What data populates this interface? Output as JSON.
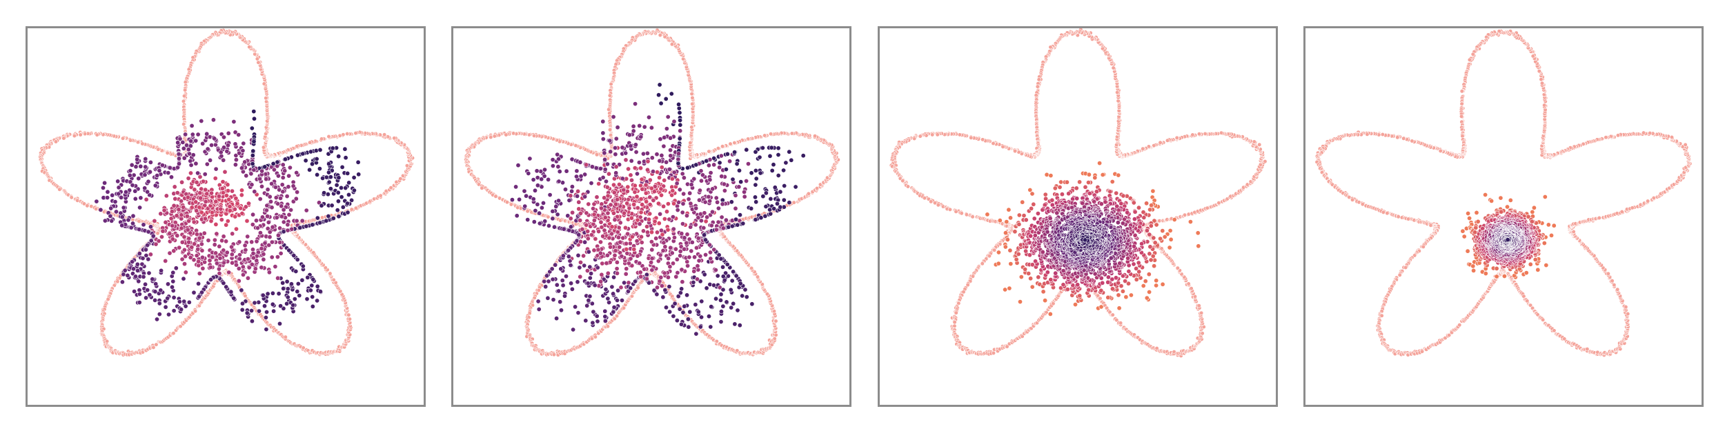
{
  "chart_data": [
    {
      "type": "scatter",
      "boundary": {
        "shape": "five-lobed flower",
        "color": "#f4a39a",
        "points_per_lobe": 240
      },
      "cloud": {
        "shape": "spiral",
        "count": 1500,
        "spread": 0.06,
        "colors": [
          "#2e1a5c",
          "#6a2a7a",
          "#a23a7d",
          "#d5466a"
        ]
      },
      "xlim": [
        -1,
        1
      ],
      "ylim": [
        -1,
        1
      ],
      "grid": false
    },
    {
      "type": "scatter",
      "boundary": {
        "shape": "five-lobed flower",
        "color": "#f4a39a",
        "points_per_lobe": 240
      },
      "cloud": {
        "shape": "spiral",
        "count": 1500,
        "spread": 0.1,
        "colors": [
          "#2e1a5c",
          "#6a2a7a",
          "#a23a7d",
          "#d5466a"
        ]
      },
      "xlim": [
        -1,
        1
      ],
      "ylim": [
        -1,
        1
      ],
      "grid": false
    },
    {
      "type": "scatter",
      "boundary": {
        "shape": "five-lobed flower",
        "color": "#f4a39a",
        "points_per_lobe": 240
      },
      "cloud": {
        "shape": "gaussian blob",
        "count": 1700,
        "center": [
          0.04,
          -0.18
        ],
        "sigma": [
          0.16,
          0.14
        ],
        "colors": [
          "#2e1a5c",
          "#6a2a7a",
          "#c43d70",
          "#ee7a58"
        ]
      },
      "xlim": [
        -1,
        1
      ],
      "ylim": [
        -1,
        1
      ],
      "grid": false
    },
    {
      "type": "scatter",
      "boundary": {
        "shape": "five-lobed flower",
        "color": "#f4a39a",
        "points_per_lobe": 240
      },
      "cloud": {
        "shape": "gaussian blob",
        "count": 1300,
        "center": [
          0.02,
          -0.18
        ],
        "sigma": [
          0.075,
          0.07
        ],
        "colors": [
          "#2e1a5c",
          "#6a2a7a",
          "#c43d70",
          "#ee7a58"
        ]
      },
      "xlim": [
        -1,
        1
      ],
      "ylim": [
        -1,
        1
      ],
      "grid": false
    }
  ]
}
